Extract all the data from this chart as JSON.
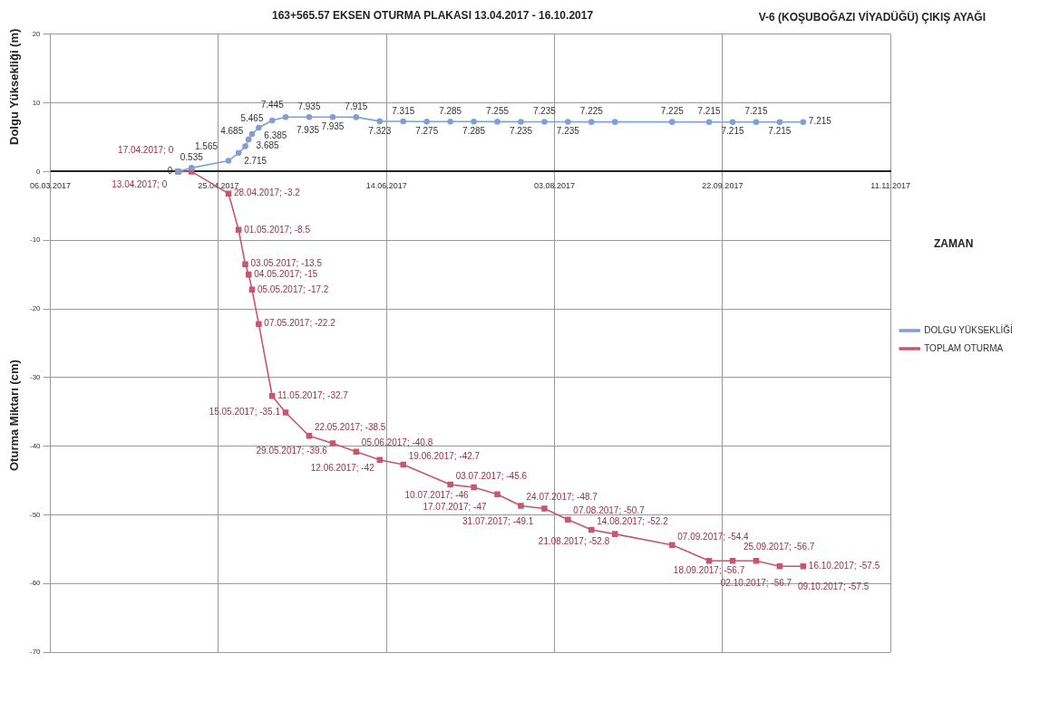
{
  "chart_data": {
    "type": "line",
    "title": "163+565.57 EKSEN OTURMA PLAKASI 13.04.2017 - 16.10.2017",
    "subtitle": "V-6 (KOŞUBOĞAZI VİYADÜĞÜ) ÇIKIŞ AYAĞI",
    "xlabel": "ZAMAN",
    "ylabel": "Oturma Miktarı (cm)",
    "annotations": [
      "Dolgu Yüksekliği (m)"
    ],
    "xlim": [
      "2017-03-06",
      "2017-11-11"
    ],
    "xticks": [
      {
        "value": "2017-03-06",
        "label": "06.03.2017"
      },
      {
        "value": "2017-04-25",
        "label": "25.04.2017"
      },
      {
        "value": "2017-06-14",
        "label": "14.06.2017"
      },
      {
        "value": "2017-08-03",
        "label": "03.08.2017"
      },
      {
        "value": "2017-09-22",
        "label": "22.09.2017"
      },
      {
        "value": "2017-11-11",
        "label": "11.11.2017"
      }
    ],
    "ylim": [
      -70,
      20
    ],
    "yticks": [
      -70,
      -60,
      -50,
      -40,
      -30,
      -20,
      -10,
      0,
      10,
      20
    ],
    "grid": true,
    "legend": "right",
    "series": [
      {
        "name": "DOLGU YÜKSEKLİĞİ",
        "color": "#7f9fd6",
        "marker": "circle",
        "x": [
          "2017-04-13",
          "2017-04-17",
          "2017-04-28",
          "2017-05-01",
          "2017-05-03",
          "2017-05-04",
          "2017-05-05",
          "2017-05-07",
          "2017-05-11",
          "2017-05-15",
          "2017-05-22",
          "2017-05-29",
          "2017-06-05",
          "2017-06-12",
          "2017-06-19",
          "2017-06-26",
          "2017-07-03",
          "2017-07-10",
          "2017-07-17",
          "2017-07-24",
          "2017-07-31",
          "2017-08-07",
          "2017-08-14",
          "2017-08-21",
          "2017-09-07",
          "2017-09-18",
          "2017-09-25",
          "2017-10-02",
          "2017-10-09",
          "2017-10-16"
        ],
        "values": [
          0,
          0.535,
          1.565,
          2.715,
          3.685,
          4.685,
          5.465,
          6.385,
          7.445,
          7.935,
          7.935,
          7.935,
          7.915,
          7.323,
          7.315,
          7.275,
          7.285,
          7.285,
          7.255,
          7.235,
          7.235,
          7.235,
          7.225,
          7.225,
          7.225,
          7.215,
          7.215,
          7.215,
          7.215,
          7.215
        ],
        "value_labels": [
          "0",
          "0.535",
          "1.565",
          "2.715",
          "3.685",
          "4.685",
          "5.465",
          "6.385",
          "7.445",
          "7.935",
          "7.935",
          "7.935",
          "7.915",
          "7.323",
          "7.315",
          "7.275",
          "7.285",
          "7.285",
          "7.255",
          "7.235",
          "7.235",
          "7.235",
          "7.225",
          null,
          "7.225",
          "7.215",
          "7.215",
          "7.215",
          "7.215",
          "7.215"
        ]
      },
      {
        "name": "TOPLAM OTURMA",
        "color": "#c8566e",
        "marker": "square",
        "x": [
          "2017-04-13",
          "2017-04-17",
          "2017-04-28",
          "2017-05-01",
          "2017-05-03",
          "2017-05-04",
          "2017-05-05",
          "2017-05-07",
          "2017-05-11",
          "2017-05-15",
          "2017-05-22",
          "2017-05-29",
          "2017-06-05",
          "2017-06-12",
          "2017-06-19",
          "2017-07-03",
          "2017-07-10",
          "2017-07-17",
          "2017-07-24",
          "2017-07-31",
          "2017-08-07",
          "2017-08-14",
          "2017-08-21",
          "2017-09-07",
          "2017-09-18",
          "2017-09-25",
          "2017-10-02",
          "2017-10-09",
          "2017-10-16"
        ],
        "values": [
          0,
          0,
          -3.2,
          -8.5,
          -13.5,
          -15,
          -17.2,
          -22.2,
          -32.7,
          -35.1,
          -38.5,
          -39.6,
          -40.8,
          -42,
          -42.7,
          -45.6,
          -46,
          -47,
          -48.7,
          -49.1,
          -50.7,
          -52.2,
          -52.8,
          -54.4,
          -56.7,
          -56.7,
          -56.7,
          -57.5,
          -57.5
        ],
        "value_labels": [
          "13.04.2017; 0",
          "17.04.2017; 0",
          "28.04.2017; -3.2",
          "01.05.2017; -8.5",
          "03.05.2017; -13.5",
          "04.05.2017; -15",
          "05.05.2017; -17.2",
          "07.05.2017; -22.2",
          "11.05.2017; -32.7",
          "15.05.2017; -35.1",
          "22.05.2017; -38.5",
          "29.05.2017; -39.6",
          "05.06.2017; -40.8",
          "12.06.2017; -42",
          "19.06.2017; -42.7",
          "03.07.2017; -45.6",
          "10.07.2017; -46",
          "17.07.2017; -47",
          "24.07.2017; -48.7",
          "31.07.2017; -49.1",
          "07.08.2017; -50.7",
          "14.08.2017; -52.2",
          "21.08.2017; -52.8",
          "07.09.2017; -54.4",
          "18.09.2017; -56.7",
          "25.09.2017; -56.7",
          "02.10.2017; -56.7",
          "09.10.2017; -57.5",
          "16.10.2017; -57.5"
        ]
      }
    ]
  }
}
